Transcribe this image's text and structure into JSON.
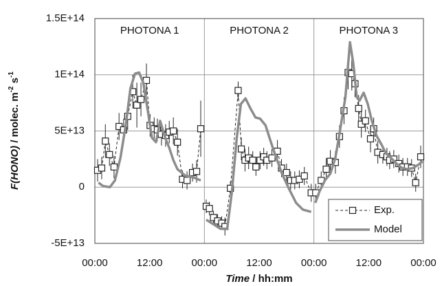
{
  "chart_data": {
    "type": "line",
    "y_label": [
      "F(HONO)",
      "  / molec. m",
      "-2",
      " s",
      "-1"
    ],
    "x_label": [
      "Time",
      " / hh:mm"
    ],
    "annotations": [
      "PHOTONA 1",
      "PHOTONA 2",
      "PHOTONA 3"
    ],
    "xlim": [
      0,
      72
    ],
    "xticks": [
      {
        "value": 0,
        "label": "00:00"
      },
      {
        "value": 12,
        "label": "12:00"
      },
      {
        "value": 24,
        "label": "00:00"
      },
      {
        "value": 36,
        "label": "12:00"
      },
      {
        "value": 48,
        "label": "00:00"
      },
      {
        "value": 60,
        "label": "12:00"
      },
      {
        "value": 72,
        "label": "00:00"
      }
    ],
    "ylim": [
      -50000000000000.0,
      150000000000000.0
    ],
    "yticks": [
      {
        "value": -50000000000000.0,
        "label": "-5E+13"
      },
      0,
      {
        "value": 50000000000000.0,
        "label": "5E+13"
      },
      {
        "value": 100000000000000.0,
        "label": "1E+14"
      },
      {
        "value": 150000000000000.0,
        "label": "1.5E+14"
      }
    ],
    "grid": true,
    "legend": "lower right",
    "series": [
      {
        "name": "Exp.",
        "color": "#222222",
        "style": "dashed-markers",
        "x": [
          0.6,
          1.5,
          2.3,
          3.2,
          4.2,
          5.3,
          6.3,
          7.2,
          8.3,
          9.2,
          10.1,
          11.3,
          12.1,
          13.0,
          13.7,
          14.6,
          15.5,
          16.3,
          17.2,
          18.1,
          19.2,
          20.2,
          21.4,
          22.3,
          23.2,
          24,
          24.4,
          25.1,
          26.0,
          26.9,
          27.8,
          28.5,
          29.7,
          31.4,
          32.1,
          32.9,
          33.7,
          34.6,
          35.3,
          36.2,
          37.0,
          37.7,
          38.8,
          40.0,
          40.9,
          42.0,
          42.9,
          43.8,
          44.8,
          45.9,
          47.4,
          48,
          48.4,
          49.6,
          50.7,
          51.6,
          52.7,
          53.6,
          54.6,
          55.5,
          56.3,
          57.0,
          57.8,
          58.4,
          59.3,
          60.4,
          61.1,
          62.0,
          63.1,
          64.0,
          64.6,
          65.5,
          66.6,
          67.5,
          68.5,
          69.4,
          70.3,
          71.4
        ],
        "values": [
          15000000000000.0,
          17000000000000.0,
          41000000000000.0,
          29000000000000.0,
          18000000000000.0,
          54000000000000.0,
          51000000000000.0,
          63000000000000.0,
          85000000000000.0,
          73000000000000.0,
          78000000000000.0,
          95000000000000.0,
          55000000000000.0,
          52000000000000.0,
          51000000000000.0,
          47000000000000.0,
          46000000000000.0,
          49000000000000.0,
          50000000000000.0,
          40000000000000.0,
          7000000000000.0,
          6000000000000.0,
          13000000000000.0,
          14000000000000.0,
          52000000000000.0,
          null,
          -17000000000000.0,
          -19000000000000.0,
          -27000000000000.0,
          -30000000000000.0,
          -32000000000000.0,
          -35000000000000.0,
          -1000000000000.0,
          86000000000000.0,
          34000000000000.0,
          24000000000000.0,
          26000000000000.0,
          24000000000000.0,
          18000000000000.0,
          24000000000000.0,
          27000000000000.0,
          24000000000000.0,
          26000000000000.0,
          32000000000000.0,
          17000000000000.0,
          13000000000000.0,
          6000000000000.0,
          6000000000000.0,
          7000000000000.0,
          10000000000000.0,
          -5000000000000.0,
          null,
          -5000000000000.0,
          6000000000000.0,
          16000000000000.0,
          23000000000000.0,
          22000000000000.0,
          45000000000000.0,
          68000000000000.0,
          102000000000000.0,
          101000000000000.0,
          92000000000000.0,
          70000000000000.0,
          56000000000000.0,
          59000000000000.0,
          43000000000000.0,
          52000000000000.0,
          31000000000000.0,
          29000000000000.0,
          27000000000000.0,
          24000000000000.0,
          25000000000000.0,
          21000000000000.0,
          18000000000000.0,
          18000000000000.0,
          17000000000000.0,
          4000000000000.0,
          27000000000000.0
        ],
        "errors": [
          10000000000000.0,
          10000000000000.0,
          15000000000000.0,
          10000000000000.0,
          10000000000000.0,
          12000000000000.0,
          10000000000000.0,
          12000000000000.0,
          15000000000000.0,
          20000000000000.0,
          15000000000000.0,
          15000000000000.0,
          10000000000000.0,
          10000000000000.0,
          10000000000000.0,
          10000000000000.0,
          10000000000000.0,
          10000000000000.0,
          12000000000000.0,
          12000000000000.0,
          8000000000000.0,
          8000000000000.0,
          8000000000000.0,
          10000000000000.0,
          25000000000000.0,
          null,
          6000000000000.0,
          6000000000000.0,
          6000000000000.0,
          6000000000000.0,
          6000000000000.0,
          8000000000000.0,
          6000000000000.0,
          8000000000000.0,
          10000000000000.0,
          10000000000000.0,
          10000000000000.0,
          8000000000000.0,
          8000000000000.0,
          8000000000000.0,
          8000000000000.0,
          8000000000000.0,
          8000000000000.0,
          10000000000000.0,
          8000000000000.0,
          8000000000000.0,
          8000000000000.0,
          8000000000000.0,
          8000000000000.0,
          8000000000000.0,
          8000000000000.0,
          null,
          8000000000000.0,
          8000000000000.0,
          10000000000000.0,
          10000000000000.0,
          10000000000000.0,
          10000000000000.0,
          12000000000000.0,
          15000000000000.0,
          15000000000000.0,
          12000000000000.0,
          12000000000000.0,
          12000000000000.0,
          10000000000000.0,
          12000000000000.0,
          10000000000000.0,
          10000000000000.0,
          8000000000000.0,
          8000000000000.0,
          8000000000000.0,
          8000000000000.0,
          8000000000000.0,
          8000000000000.0,
          8000000000000.0,
          8000000000000.0,
          8000000000000.0,
          10000000000000.0
        ]
      },
      {
        "name": "Model",
        "color": "#8c8c8c",
        "style": "thick",
        "x": [
          0.8,
          1.8,
          3.3,
          4.4,
          5.6,
          6.8,
          7.8,
          8.8,
          9.7,
          10.6,
          11.6,
          12.5,
          13.4,
          14.3,
          15.4,
          16.3,
          17.2,
          18.1,
          19.0,
          19.9,
          21.4,
          23.2,
          24,
          24.4,
          26.0,
          27.5,
          29.0,
          30.0,
          31.1,
          32.0,
          33.0,
          34.1,
          35.2,
          36.2,
          37.4,
          38.5,
          39.5,
          41.0,
          42.6,
          44.1,
          45.6,
          47.4,
          48,
          48.3,
          49.2,
          50.4,
          51.6,
          52.7,
          53.7,
          54.9,
          55.9,
          56.6,
          57.4,
          58.0,
          58.9,
          59.8,
          60.7,
          61.7,
          62.8,
          63.8,
          64.9,
          66.1,
          67.3,
          68.5,
          69.7,
          70.9,
          71.8
        ],
        "values": [
          4000000000000.0,
          1000000000000.0,
          0,
          6000000000000.0,
          26000000000000.0,
          56000000000000.0,
          88000000000000.0,
          101000000000000.0,
          102000000000000.0,
          93000000000000.0,
          68000000000000.0,
          44000000000000.0,
          40000000000000.0,
          59000000000000.0,
          44000000000000.0,
          35000000000000.0,
          24000000000000.0,
          16000000000000.0,
          13000000000000.0,
          10000000000000.0,
          9000000000000.0,
          6000000000000.0,
          null,
          -29000000000000.0,
          -33000000000000.0,
          -37000000000000.0,
          -37000000000000.0,
          -5000000000000.0,
          44000000000000.0,
          74000000000000.0,
          79000000000000.0,
          70000000000000.0,
          62000000000000.0,
          61000000000000.0,
          55000000000000.0,
          41000000000000.0,
          29000000000000.0,
          12000000000000.0,
          -2000000000000.0,
          -14000000000000.0,
          -20000000000000.0,
          -22000000000000.0,
          null,
          -14000000000000.0,
          -4000000000000.0,
          6000000000000.0,
          12000000000000.0,
          26000000000000.0,
          50000000000000.0,
          80000000000000.0,
          129000000000000.0,
          111000000000000.0,
          80000000000000.0,
          77000000000000.0,
          84000000000000.0,
          74000000000000.0,
          59000000000000.0,
          46000000000000.0,
          38000000000000.0,
          30000000000000.0,
          26000000000000.0,
          21000000000000.0,
          17000000000000.0,
          16000000000000.0,
          17000000000000.0,
          20000000000000.0,
          23000000000000.0
        ]
      }
    ]
  }
}
